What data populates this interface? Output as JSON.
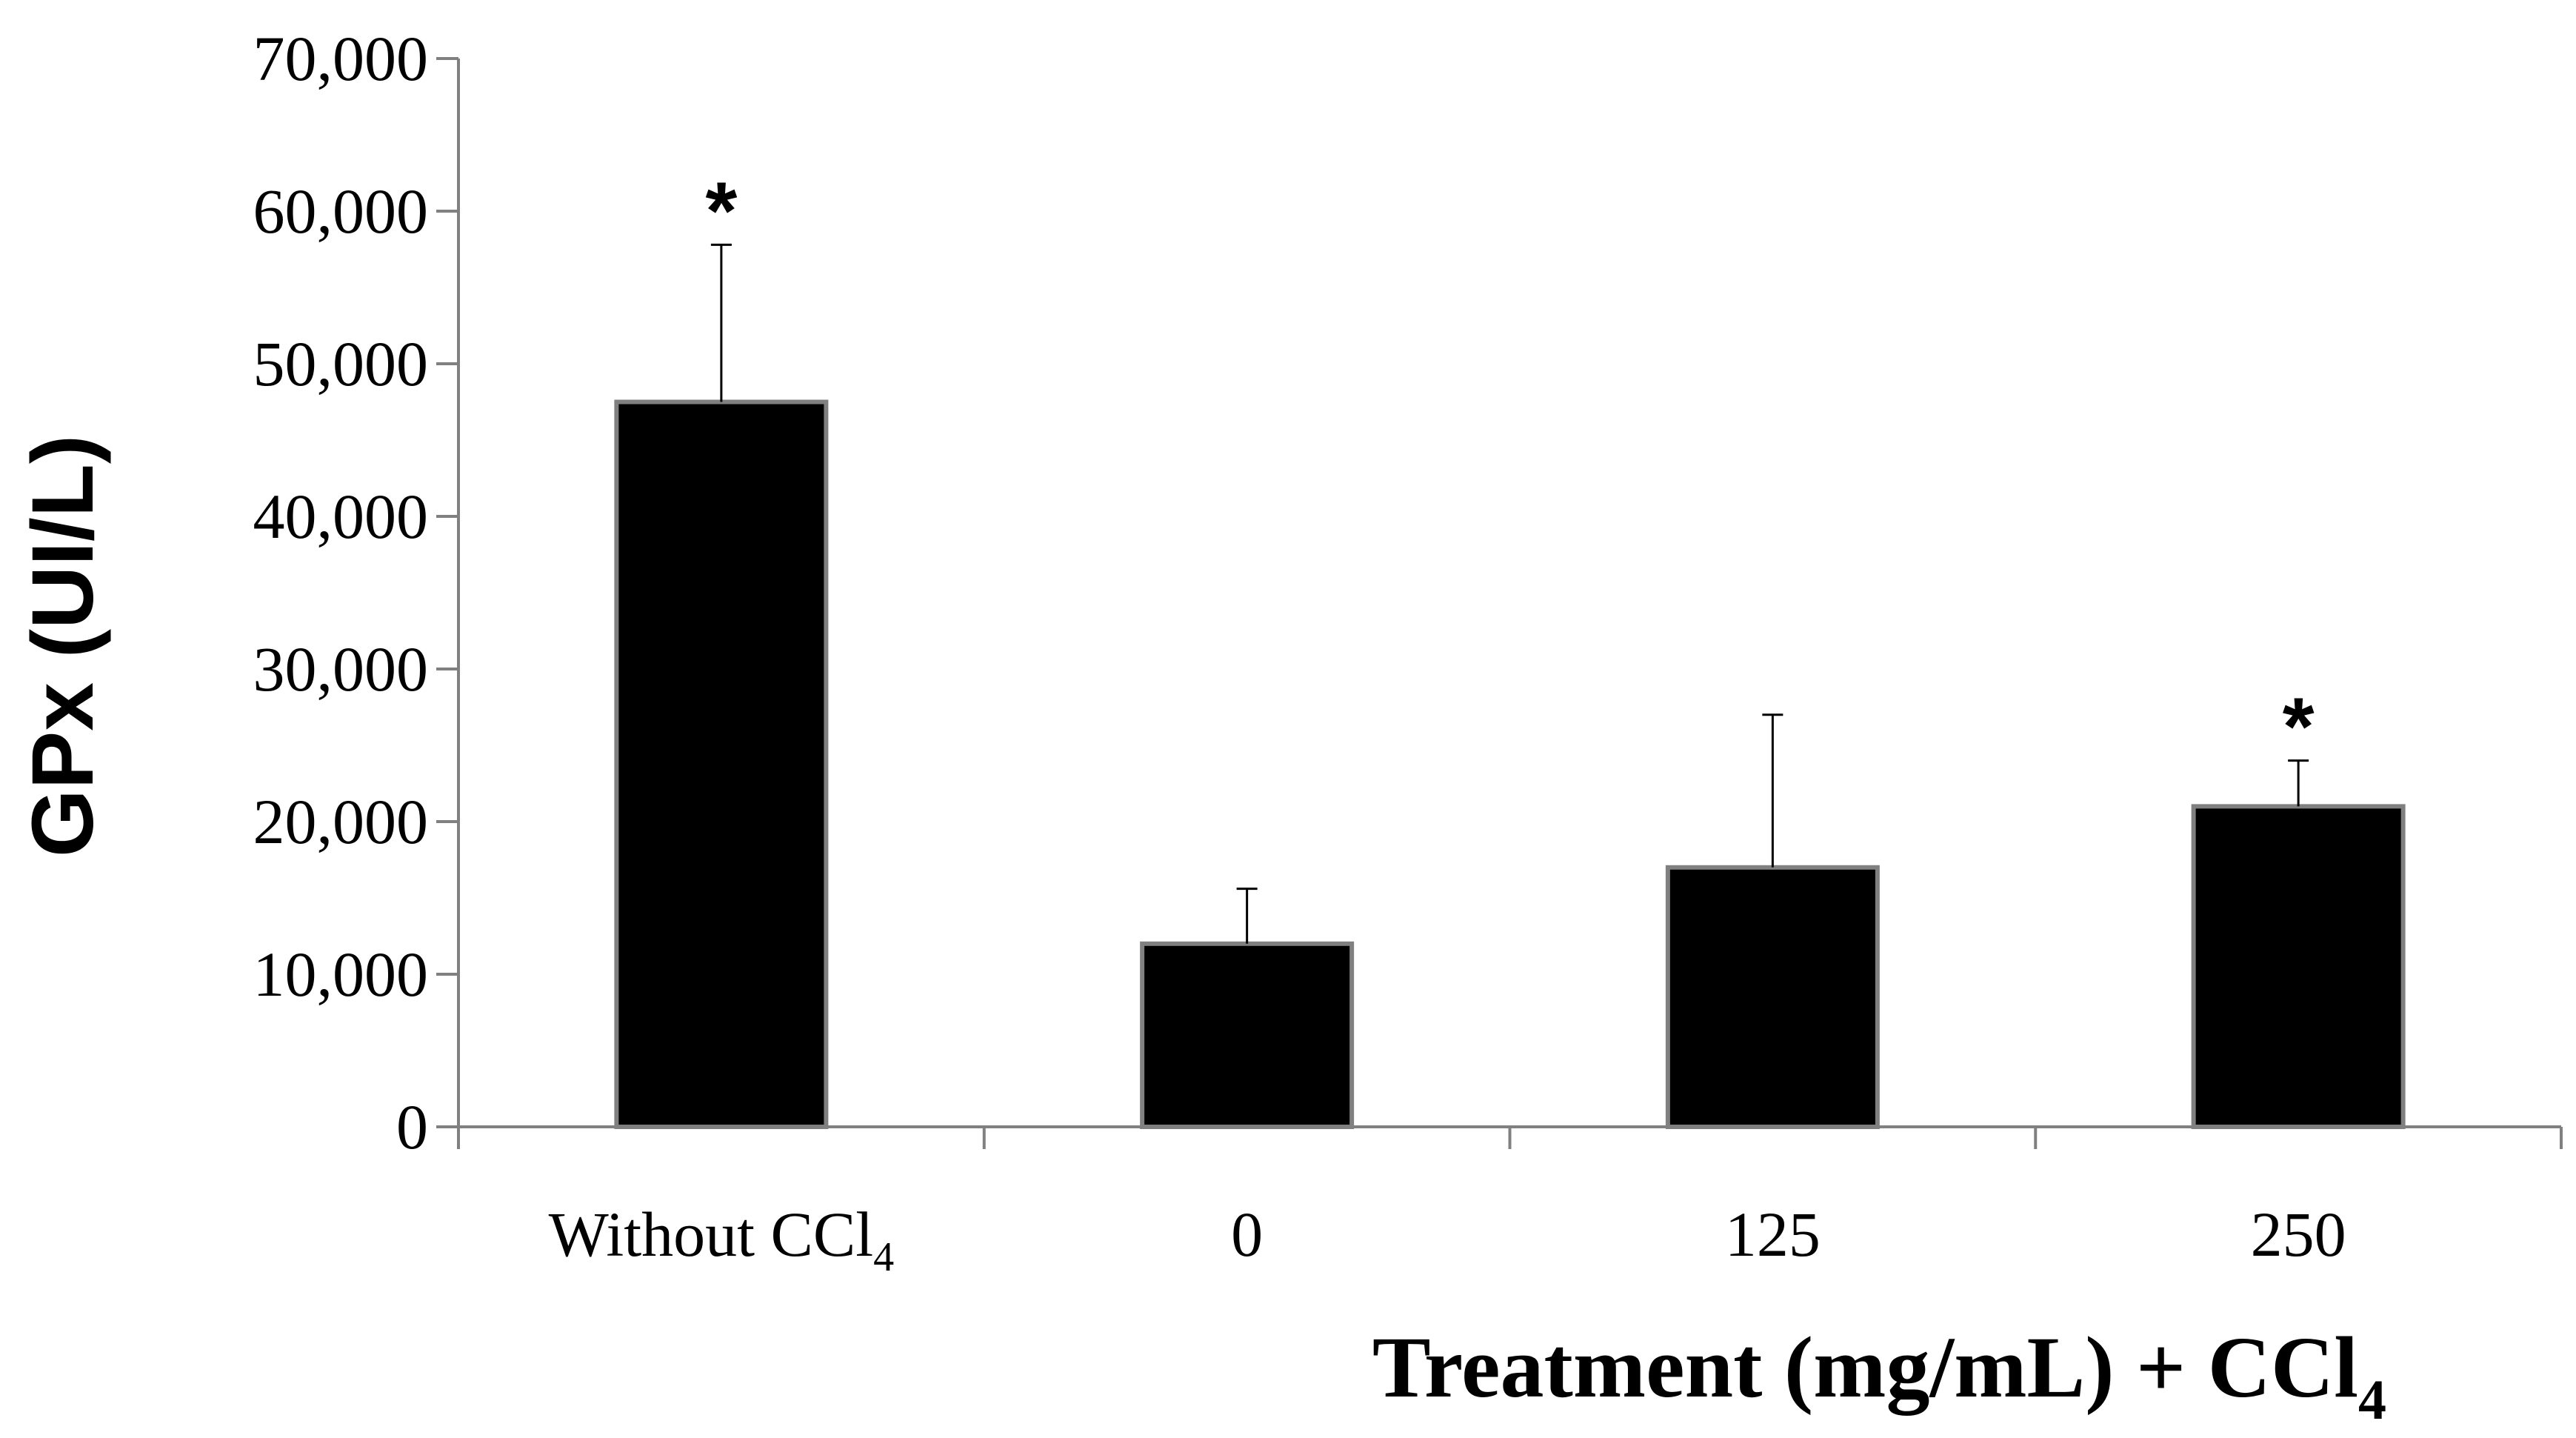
{
  "chart_data": {
    "type": "bar",
    "ylabel": "GPx (UI/L)",
    "xlabel": "Treatment (mg/mL) + CCl",
    "xlabel_subscript": "4",
    "categories": [
      "Without CCl",
      "0",
      "125",
      "250"
    ],
    "category_subscripts": [
      "4",
      "",
      "",
      ""
    ],
    "values": [
      47500,
      12000,
      17000,
      21000
    ],
    "error_upper": [
      57800,
      15600,
      27000,
      24000
    ],
    "significance": [
      "*",
      "",
      "",
      "*"
    ],
    "ylim": [
      0,
      70000
    ],
    "yticks": [
      0,
      10000,
      20000,
      30000,
      40000,
      50000,
      60000,
      70000
    ],
    "ytick_labels": [
      "0",
      "10,000",
      "20,000",
      "30,000",
      "40,000",
      "50,000",
      "60,000",
      "70,000"
    ],
    "colors": {
      "bar_fill": "#000000",
      "bar_stroke": "#808080",
      "axis": "#808080",
      "text": "#000000"
    }
  }
}
